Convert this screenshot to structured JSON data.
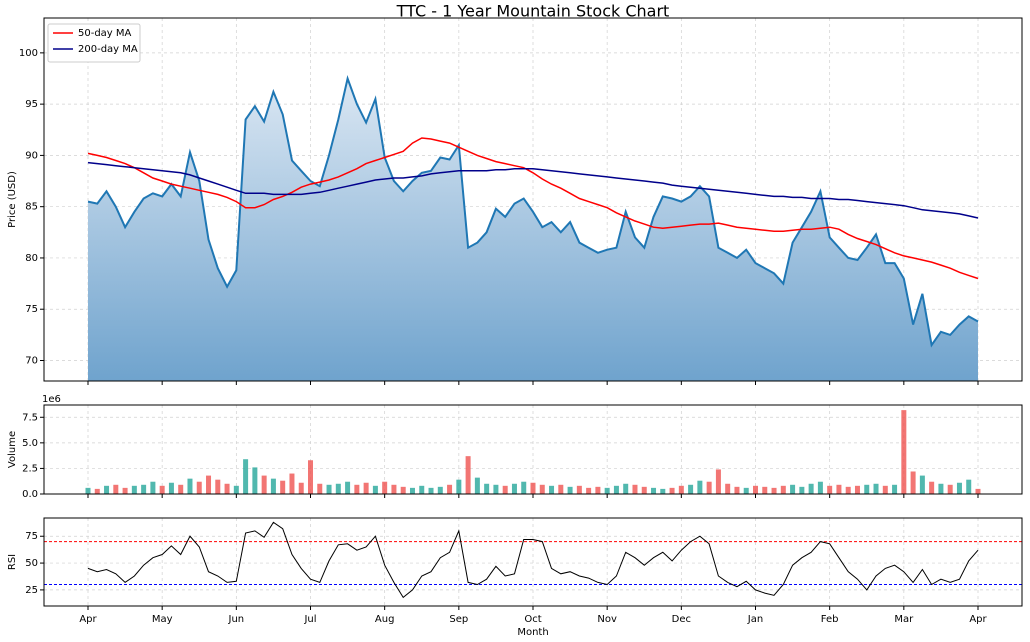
{
  "chart_data": [
    {
      "type": "area",
      "title": "TTC - 1 Year Mountain Stock Chart",
      "ylabel": "Price (USD)",
      "ylim": [
        68,
        103.4
      ],
      "yticks": [
        70,
        75,
        80,
        85,
        90,
        95,
        100
      ],
      "grid": true,
      "legend": "upper left",
      "series": [
        {
          "color": "#1f77b4",
          "fill": true,
          "values": [
            85.5,
            85.3,
            86.5,
            85,
            83,
            84.5,
            85.8,
            86.3,
            86,
            87.2,
            86,
            90.3,
            87.5,
            81.8,
            79,
            77.2,
            78.8,
            93.5,
            94.8,
            93.3,
            96.2,
            94,
            89.5,
            88.5,
            87.5,
            87,
            90,
            93.5,
            97.5,
            95,
            93.2,
            95.5,
            89.8,
            87.5,
            86.5,
            87.5,
            88.3,
            88.5,
            89.8,
            89.6,
            91,
            81,
            81.5,
            82.5,
            84.8,
            84,
            85.3,
            85.8,
            84.5,
            83,
            83.5,
            82.5,
            83.5,
            81.5,
            81,
            80.5,
            80.8,
            81,
            84.5,
            82,
            81,
            84,
            86,
            85.8,
            85.5,
            86,
            87,
            86,
            81,
            80.5,
            80,
            80.8,
            79.5,
            79,
            78.5,
            77.5,
            81.5,
            83,
            84.5,
            86.5,
            82,
            81,
            80,
            79.8,
            81,
            82.3,
            79.5,
            79.5,
            78,
            73.5,
            76.5,
            71.5,
            72.8,
            72.5,
            73.5,
            74.3,
            73.8
          ]
        },
        {
          "name": "50-day MA",
          "color": "#ff0000",
          "values": [
            90.2,
            90.0,
            89.8,
            89.5,
            89.2,
            88.8,
            88.3,
            87.8,
            87.5,
            87.2,
            87.0,
            86.8,
            86.6,
            86.4,
            86.2,
            85.9,
            85.5,
            84.9,
            84.9,
            85.2,
            85.7,
            86.0,
            86.4,
            86.9,
            87.2,
            87.4,
            87.6,
            87.9,
            88.3,
            88.7,
            89.2,
            89.5,
            89.8,
            90.1,
            90.4,
            91.2,
            91.7,
            91.6,
            91.4,
            91.2,
            90.8,
            90.4,
            90.0,
            89.7,
            89.4,
            89.2,
            89.0,
            88.8,
            88.3,
            87.7,
            87.2,
            86.8,
            86.3,
            85.8,
            85.5,
            85.2,
            84.9,
            84.4,
            84.0,
            83.6,
            83.3,
            83.0,
            82.9,
            83.0,
            83.1,
            83.2,
            83.3,
            83.3,
            83.4,
            83.2,
            83.0,
            82.9,
            82.8,
            82.7,
            82.6,
            82.6,
            82.7,
            82.8,
            82.8,
            82.9,
            83.0,
            82.8,
            82.3,
            81.9,
            81.6,
            81.3,
            80.9,
            80.5,
            80.2,
            80.0,
            79.8,
            79.6,
            79.3,
            79.0,
            78.6,
            78.3,
            78.0
          ]
        },
        {
          "name": "200-day MA",
          "color": "#00008b",
          "values": [
            89.3,
            89.2,
            89.1,
            89.0,
            88.9,
            88.8,
            88.7,
            88.6,
            88.5,
            88.4,
            88.3,
            88.1,
            87.8,
            87.5,
            87.2,
            86.9,
            86.6,
            86.3,
            86.3,
            86.3,
            86.2,
            86.2,
            86.2,
            86.2,
            86.3,
            86.4,
            86.6,
            86.8,
            87.0,
            87.2,
            87.4,
            87.6,
            87.7,
            87.8,
            87.8,
            87.9,
            88.0,
            88.2,
            88.3,
            88.4,
            88.5,
            88.5,
            88.5,
            88.5,
            88.6,
            88.6,
            88.7,
            88.7,
            88.7,
            88.6,
            88.5,
            88.4,
            88.3,
            88.2,
            88.1,
            88.0,
            87.9,
            87.8,
            87.7,
            87.6,
            87.5,
            87.4,
            87.3,
            87.1,
            87.0,
            86.9,
            86.8,
            86.7,
            86.6,
            86.5,
            86.4,
            86.3,
            86.2,
            86.1,
            86.0,
            86.0,
            85.9,
            85.9,
            85.8,
            85.8,
            85.8,
            85.7,
            85.7,
            85.6,
            85.5,
            85.4,
            85.3,
            85.2,
            85.1,
            84.9,
            84.7,
            84.6,
            84.5,
            84.4,
            84.3,
            84.1,
            83.9
          ]
        }
      ]
    },
    {
      "type": "bar",
      "ylabel": "Volume",
      "scale_label": "1e6",
      "ylim": [
        0,
        8.7
      ],
      "yticks": [
        {
          "value": 0,
          "label": "0.0"
        },
        2.5,
        {
          "value": 5,
          "label": "5.0"
        },
        7.5
      ],
      "grid": true,
      "up_color": "#26a69a",
      "down_color": "#ef5350",
      "values": [
        0.6,
        0.5,
        0.8,
        0.9,
        0.6,
        0.8,
        0.9,
        1.2,
        0.8,
        1.1,
        0.9,
        1.5,
        1.2,
        1.8,
        1.4,
        1.0,
        0.8,
        3.4,
        2.6,
        1.8,
        1.5,
        1.3,
        2.0,
        1.1,
        3.3,
        1.0,
        0.9,
        1.0,
        1.2,
        0.9,
        1.1,
        0.8,
        1.2,
        0.9,
        0.7,
        0.6,
        0.8,
        0.6,
        0.7,
        0.9,
        1.4,
        3.7,
        1.6,
        1.0,
        0.9,
        0.8,
        1.0,
        1.2,
        1.1,
        0.9,
        0.8,
        0.9,
        0.7,
        0.8,
        0.6,
        0.7,
        0.6,
        0.8,
        1.0,
        0.9,
        0.7,
        0.6,
        0.5,
        0.6,
        0.8,
        0.9,
        1.3,
        1.2,
        2.4,
        1.0,
        0.7,
        0.6,
        0.8,
        0.7,
        0.6,
        0.8,
        0.9,
        0.7,
        1.0,
        1.2,
        0.8,
        0.9,
        0.7,
        0.8,
        0.9,
        1.0,
        0.8,
        0.9,
        8.2,
        2.2,
        1.8,
        1.2,
        1.0,
        0.9,
        1.1,
        1.4,
        0.5
      ]
    },
    {
      "type": "line",
      "ylabel": "RSI",
      "xlabel": "Month",
      "ylim": [
        10,
        92
      ],
      "yticks": [
        25,
        50,
        75
      ],
      "grid": true,
      "reference_lines": [
        {
          "value": 70,
          "color": "#ff0000"
        },
        {
          "value": 30,
          "color": "#0000ff"
        }
      ],
      "categories": [
        "Apr",
        null,
        null,
        null,
        null,
        null,
        null,
        null,
        "May",
        null,
        null,
        null,
        null,
        null,
        null,
        null,
        "Jun",
        null,
        null,
        null,
        null,
        null,
        null,
        null,
        "Jul",
        null,
        null,
        null,
        null,
        null,
        null,
        null,
        "Aug",
        null,
        null,
        null,
        null,
        null,
        null,
        null,
        "Sep",
        null,
        null,
        null,
        null,
        null,
        null,
        null,
        "Oct",
        null,
        null,
        null,
        null,
        null,
        null,
        null,
        "Nov",
        null,
        null,
        null,
        null,
        null,
        null,
        null,
        "Dec",
        null,
        null,
        null,
        null,
        null,
        null,
        null,
        "Jan",
        null,
        null,
        null,
        null,
        null,
        null,
        null,
        "Feb",
        null,
        null,
        null,
        null,
        null,
        null,
        null,
        "Mar",
        null,
        null,
        null,
        null,
        null,
        null,
        null,
        "Apr"
      ],
      "series": [
        {
          "color": "#000000",
          "values": [
            45,
            42,
            44,
            40,
            32,
            38,
            48,
            55,
            58,
            66,
            58,
            75,
            65,
            42,
            38,
            32,
            33,
            78,
            80,
            74,
            88,
            82,
            58,
            45,
            35,
            32,
            52,
            67,
            68,
            62,
            65,
            75,
            48,
            32,
            18,
            25,
            38,
            42,
            55,
            60,
            80,
            32,
            30,
            35,
            47,
            38,
            40,
            72,
            72,
            70,
            45,
            40,
            42,
            38,
            36,
            32,
            30,
            38,
            60,
            55,
            48,
            55,
            60,
            52,
            62,
            70,
            75,
            68,
            38,
            32,
            28,
            33,
            25,
            22,
            20,
            30,
            48,
            55,
            60,
            70,
            68,
            55,
            42,
            35,
            25,
            38,
            45,
            48,
            42,
            32,
            44,
            30,
            35,
            32,
            35,
            52,
            62
          ]
        }
      ]
    }
  ]
}
